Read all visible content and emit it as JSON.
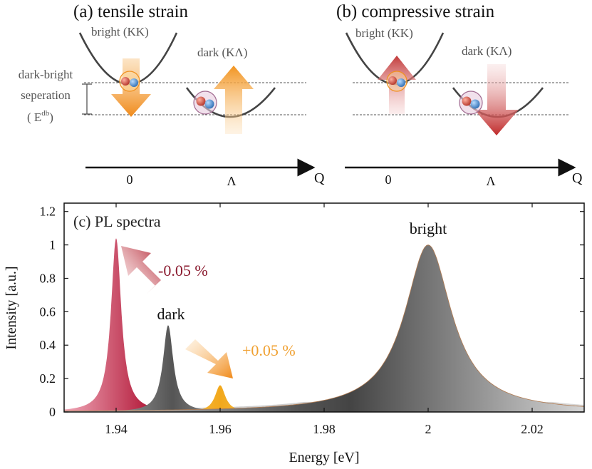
{
  "panels": {
    "a": {
      "title": "(a) tensile strain",
      "bright_label": "bright (KK)",
      "dark_label": "dark (KΛ)",
      "separation_label_1": "dark-bright",
      "separation_label_2": "seperation",
      "separation_label_3": "( E",
      "separation_sup": "db",
      "separation_close": ")",
      "axis_q": "Q",
      "tick_0": "0",
      "tick_lambda": "Λ"
    },
    "b": {
      "title": "(b) compressive strain",
      "bright_label": "bright (KK)",
      "dark_label": "dark (KΛ)",
      "axis_q": "Q",
      "tick_0": "0",
      "tick_lambda": "Λ"
    }
  },
  "colors": {
    "tensile": "#f0901e",
    "compressive": "#c23a3a",
    "dark_peak": "#555555",
    "bright_peak": "#444444",
    "compressive_peak": "#c0304e",
    "tensile_peak": "#f2a81c"
  },
  "chart_data": {
    "type": "area",
    "title": "(c) PL spectra",
    "xlabel": "Energy [eV]",
    "ylabel": "Intensity [a.u.]",
    "xlim": [
      1.93,
      2.03
    ],
    "ylim": [
      0,
      1.25
    ],
    "xticks": [
      "1.94",
      "1.96",
      "1.98",
      "2",
      "2.02"
    ],
    "xtick_values": [
      1.94,
      1.96,
      1.98,
      2.0,
      2.02
    ],
    "yticks": [
      "0",
      "0.2",
      "0.4",
      "0.6",
      "0.8",
      "1",
      "1.2"
    ],
    "ytick_values": [
      0,
      0.2,
      0.4,
      0.6,
      0.8,
      1.0,
      1.2
    ],
    "series": [
      {
        "name": "-0.05 % dark",
        "center": 1.94,
        "peak": 1.04,
        "width": 0.0012
      },
      {
        "name": "dark",
        "center": 1.95,
        "peak": 0.52,
        "width": 0.0012
      },
      {
        "name": "+0.05 % dark",
        "center": 1.96,
        "peak": 0.16,
        "width": 0.0012
      },
      {
        "name": "bright",
        "center": 2.0,
        "peak": 1.0,
        "width": 0.0055
      }
    ],
    "annotations": {
      "bright": "bright",
      "dark": "dark",
      "compressive": "-0.05 %",
      "tensile": "+0.05 %"
    }
  }
}
